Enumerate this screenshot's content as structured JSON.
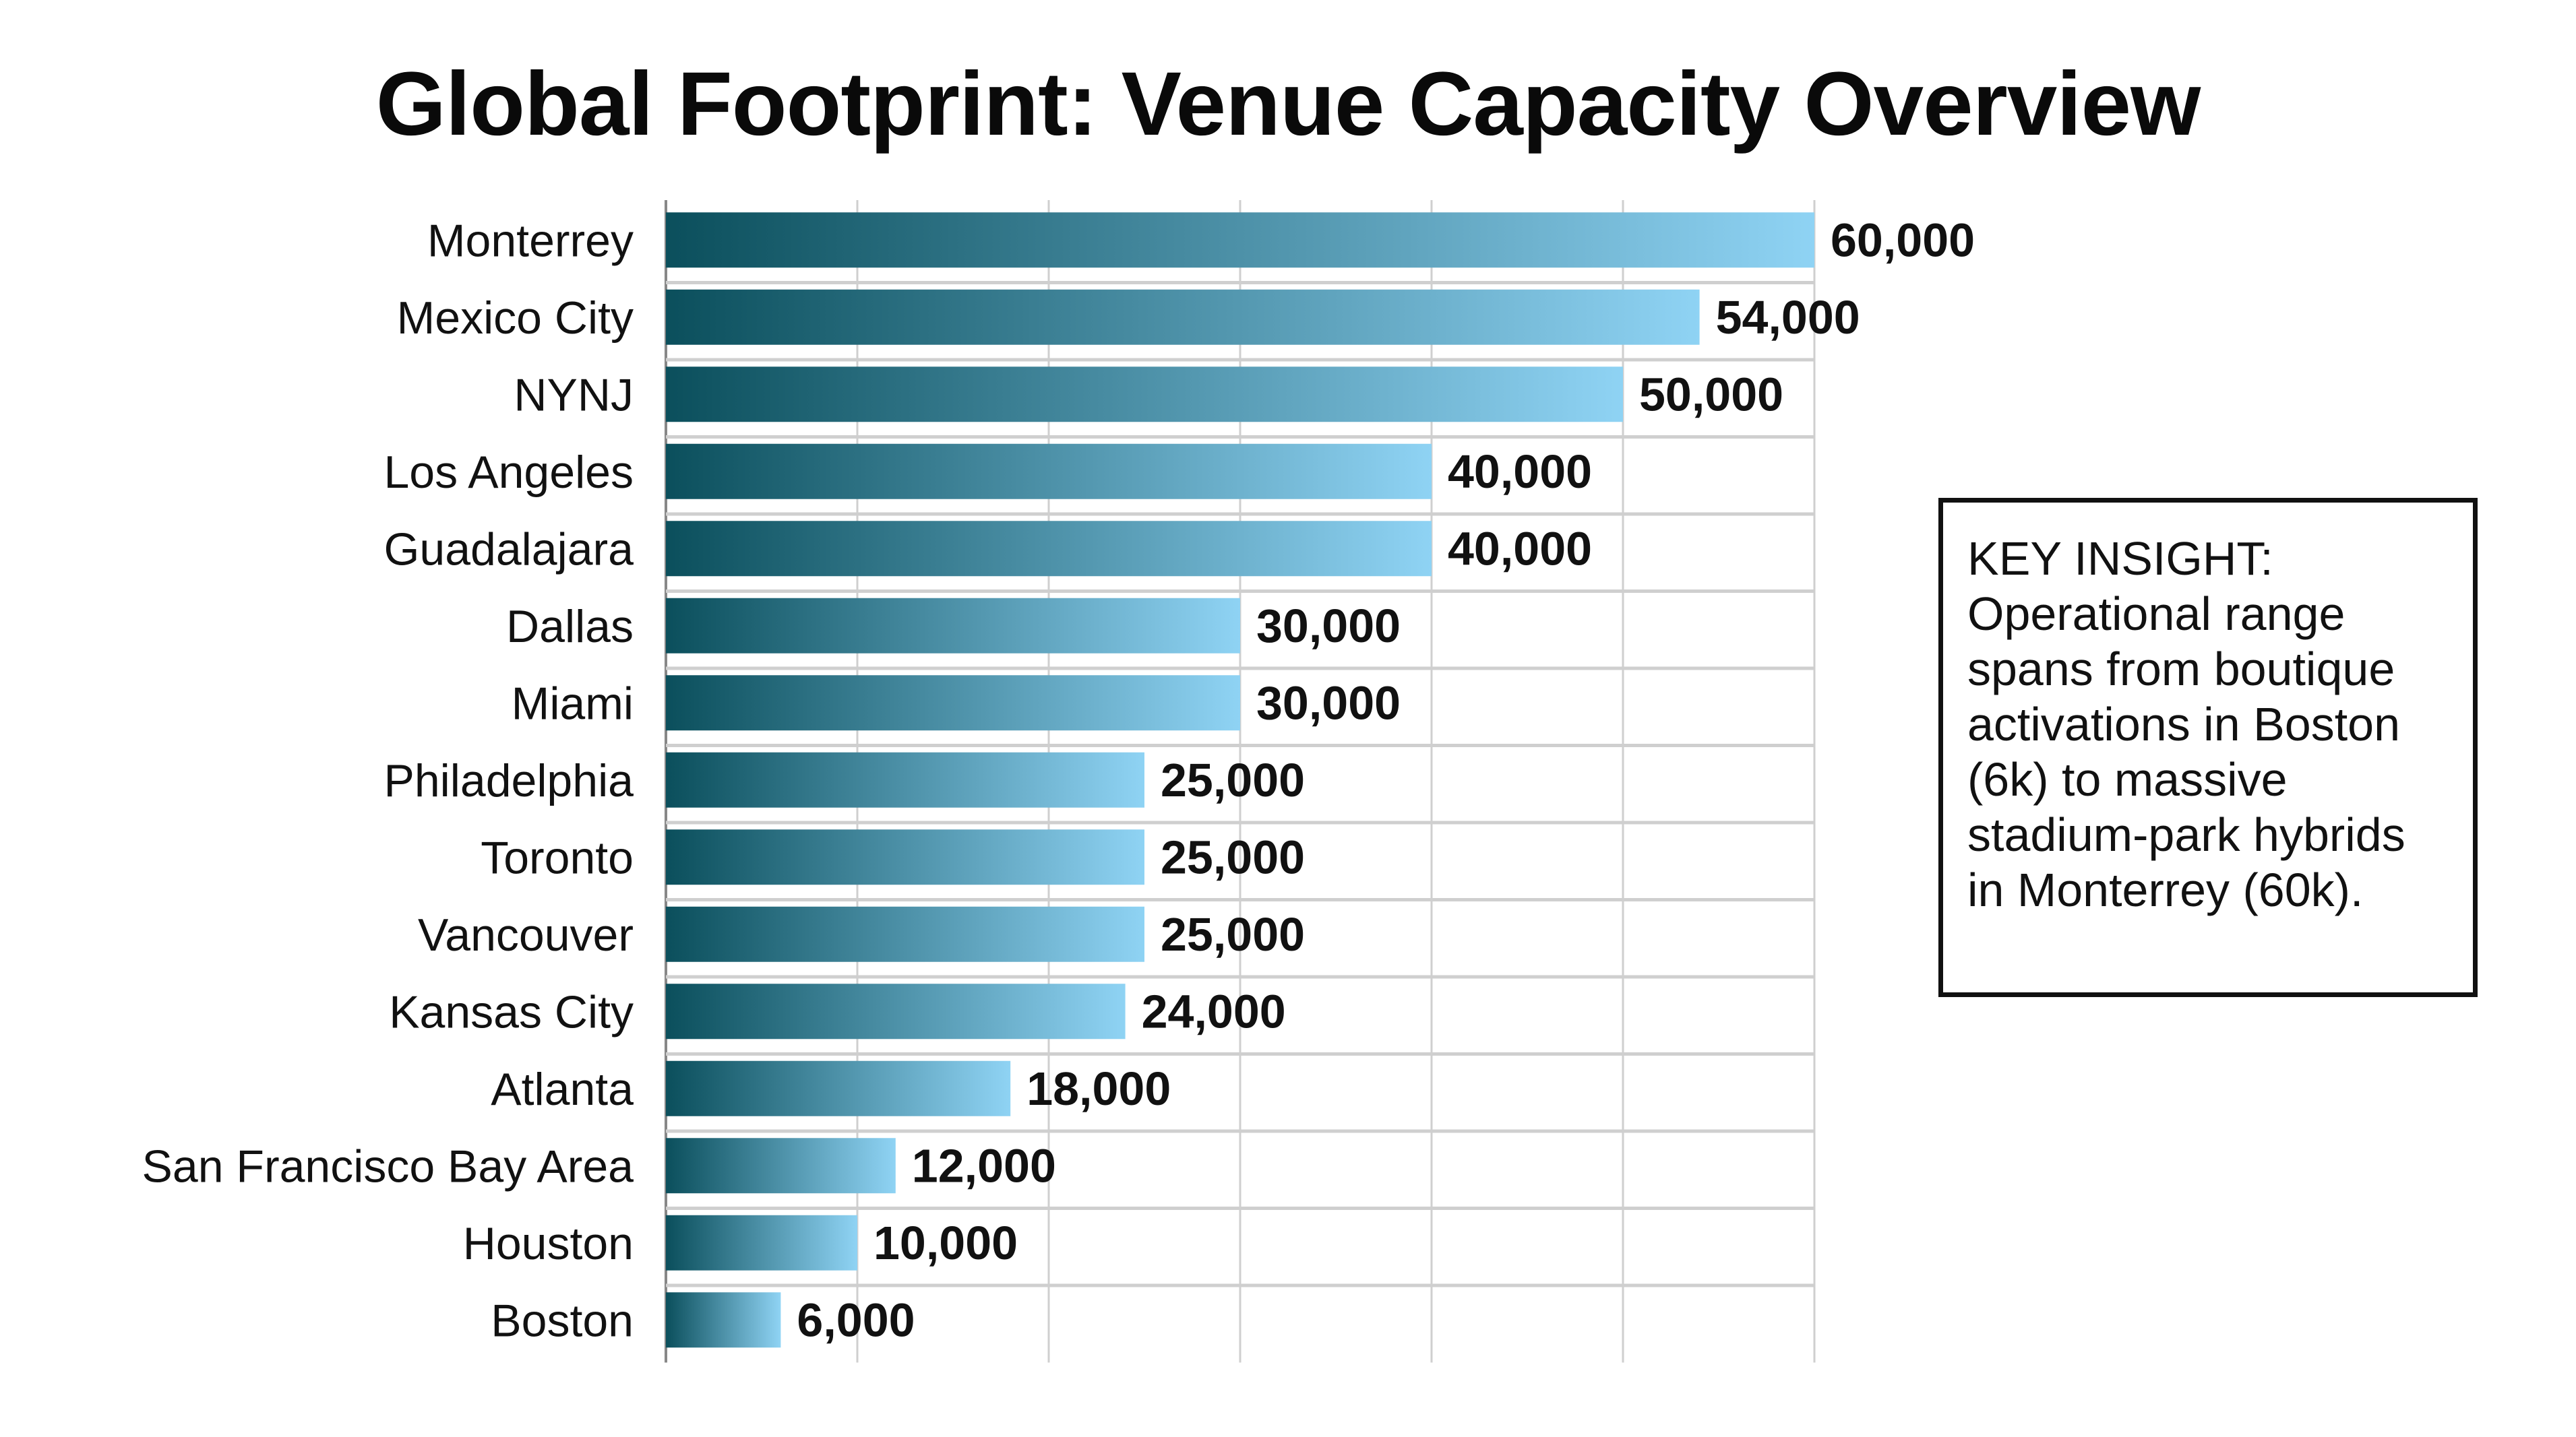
{
  "chart_data": {
    "type": "bar",
    "orientation": "horizontal",
    "title": "Global Footprint: Venue Capacity Overview",
    "xlabel": "",
    "ylabel": "",
    "xlim": [
      0,
      60000
    ],
    "grid": true,
    "categories": [
      "Monterrey",
      "Mexico City",
      "NYNJ",
      "Los Angeles",
      "Guadalajara",
      "Dallas",
      "Miami",
      "Philadelphia",
      "Toronto",
      "Vancouver",
      "Kansas City",
      "Atlanta",
      "San Francisco Bay Area",
      "Houston",
      "Boston"
    ],
    "values": [
      60000,
      54000,
      50000,
      40000,
      40000,
      30000,
      30000,
      25000,
      25000,
      25000,
      24000,
      18000,
      12000,
      10000,
      6000
    ],
    "data_labels": [
      "60,000",
      "54,000",
      "50,000",
      "40,000",
      "40,000",
      "30,000",
      "30,000",
      "25,000",
      "25,000",
      "25,000",
      "24,000",
      "18,000",
      "12,000",
      "10,000",
      "6,000"
    ],
    "colors": {
      "bar_start": "#0b4f5c",
      "bar_end": "#8fd3f4",
      "grid": "#cfcfcf",
      "text": "#111111"
    }
  },
  "annotation": {
    "text": "KEY INSIGHT: Operational range spans from boutique activations in Boston (6k) to massive stadium-park hybrids in Monterrey (60k)."
  }
}
